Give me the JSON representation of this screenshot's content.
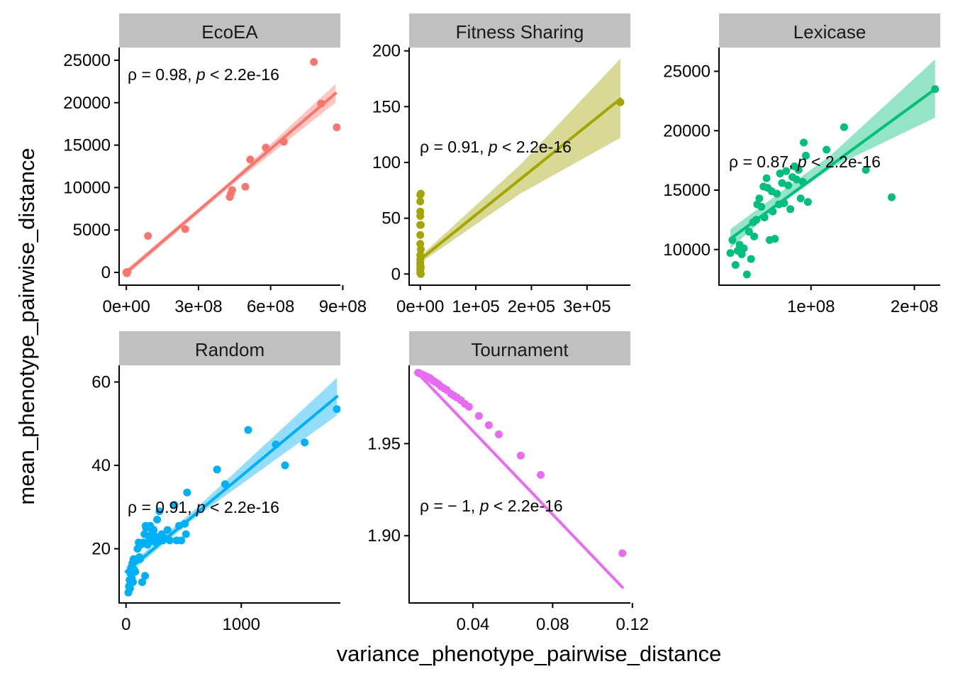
{
  "chart_data": {
    "type": "scatter",
    "xlabel": "variance_phenotype_pairwise_distance",
    "ylabel": "mean_phenotype_pairwise_distance",
    "grid": false,
    "legend": "none",
    "panels": [
      {
        "name": "EcoEA",
        "color": "#F8766D",
        "xlim": [
          -30000000,
          890000000
        ],
        "ylim": [
          -1500,
          26500
        ],
        "xticks": [
          0,
          300000000,
          600000000,
          900000000
        ],
        "xtick_labels": [
          "0e+00",
          "3e+08",
          "6e+08",
          "9e+08"
        ],
        "yticks": [
          0,
          5000,
          10000,
          15000,
          20000,
          25000
        ],
        "ytick_labels": [
          "0",
          "5000",
          "10000",
          "15000",
          "20000",
          "25000"
        ],
        "points": [
          [
            0,
            0
          ],
          [
            2000000,
            -100
          ],
          [
            5000000,
            50
          ],
          [
            90000000,
            4300
          ],
          [
            245000000,
            5100
          ],
          [
            430000000,
            8900
          ],
          [
            435000000,
            9300
          ],
          [
            440000000,
            9700
          ],
          [
            495000000,
            10100
          ],
          [
            515000000,
            13300
          ],
          [
            580000000,
            14700
          ],
          [
            655000000,
            15400
          ],
          [
            780000000,
            24800
          ],
          [
            810000000,
            19900
          ],
          [
            875000000,
            17100
          ]
        ],
        "fit": {
          "x0": 0,
          "y0": 0,
          "x1": 870000000,
          "y1": 21100
        },
        "band": [
          [
            0,
            -350,
            350
          ],
          [
            435000000,
            10200,
            10800
          ],
          [
            870000000,
            20000,
            22200
          ]
        ],
        "annotation": {
          "rho": "0.98",
          "p": "< 2.2e-16"
        }
      },
      {
        "name": "Fitness Sharing",
        "color": "#A3A500",
        "xlim": [
          -20000,
          378000
        ],
        "ylim": [
          -10,
          203
        ],
        "xticks": [
          0,
          100000,
          200000,
          300000
        ],
        "xtick_labels": [
          "0e+00",
          "1e+05",
          "2e+05",
          "3e+05"
        ],
        "yticks": [
          0,
          50,
          100,
          150,
          200
        ],
        "ytick_labels": [
          "0",
          "50",
          "100",
          "150",
          "200"
        ],
        "points": [
          [
            0,
            1
          ],
          [
            0,
            3
          ],
          [
            0,
            5
          ],
          [
            0,
            8
          ],
          [
            0,
            10
          ],
          [
            0,
            13
          ],
          [
            0,
            17
          ],
          [
            0,
            27
          ],
          [
            0,
            35
          ],
          [
            0,
            44
          ],
          [
            0,
            52
          ],
          [
            0,
            56
          ],
          [
            0,
            65
          ],
          [
            0,
            71
          ],
          [
            1000,
            0
          ],
          [
            1000,
            6
          ],
          [
            1000,
            22
          ],
          [
            1000,
            44
          ],
          [
            1000,
            72
          ],
          [
            360000,
            154
          ]
        ],
        "fit": {
          "x0": 0,
          "y0": 13,
          "x1": 360000,
          "y1": 157
        },
        "band": [
          [
            0,
            10,
            16
          ],
          [
            180000,
            72,
            98
          ],
          [
            360000,
            122,
            193
          ]
        ],
        "annotation": {
          "rho": "0.91",
          "p": "< 2.2e-16"
        }
      },
      {
        "name": "Lexicase",
        "color": "#00BF7D",
        "xlim": [
          11000000,
          225000000
        ],
        "ylim": [
          7000,
          27000
        ],
        "xticks": [
          100000000,
          200000000
        ],
        "xtick_labels": [
          "1e+08",
          "2e+08"
        ],
        "yticks": [
          10000,
          15000,
          20000,
          25000
        ],
        "ytick_labels": [
          "10000",
          "15000",
          "20000",
          "25000"
        ],
        "points": [
          [
            22000000,
            9700
          ],
          [
            24000000,
            10800
          ],
          [
            27000000,
            8700
          ],
          [
            29000000,
            9900
          ],
          [
            31000000,
            10400
          ],
          [
            33000000,
            9600
          ],
          [
            35000000,
            10100
          ],
          [
            38000000,
            7900
          ],
          [
            40000000,
            11500
          ],
          [
            42000000,
            9200
          ],
          [
            44000000,
            12300
          ],
          [
            45000000,
            11100
          ],
          [
            47000000,
            12500
          ],
          [
            48000000,
            13800
          ],
          [
            50000000,
            14300
          ],
          [
            52000000,
            13600
          ],
          [
            54000000,
            15300
          ],
          [
            55000000,
            12700
          ],
          [
            57000000,
            16000
          ],
          [
            58000000,
            15200
          ],
          [
            60000000,
            10800
          ],
          [
            62000000,
            14900
          ],
          [
            63000000,
            13200
          ],
          [
            65000000,
            10900
          ],
          [
            67000000,
            14700
          ],
          [
            69000000,
            13800
          ],
          [
            70000000,
            16400
          ],
          [
            72000000,
            15600
          ],
          [
            74000000,
            13900
          ],
          [
            76000000,
            16600
          ],
          [
            78000000,
            15400
          ],
          [
            80000000,
            13400
          ],
          [
            82000000,
            16100
          ],
          [
            84000000,
            17000
          ],
          [
            86000000,
            15900
          ],
          [
            88000000,
            16700
          ],
          [
            90000000,
            14300
          ],
          [
            92000000,
            15700
          ],
          [
            93000000,
            19000
          ],
          [
            95000000,
            17900
          ],
          [
            97000000,
            14000
          ],
          [
            115000000,
            18400
          ],
          [
            132000000,
            20300
          ],
          [
            153000000,
            16700
          ],
          [
            178000000,
            14400
          ],
          [
            220000000,
            23500
          ]
        ],
        "fit": {
          "x0": 22000000,
          "y0": 10900,
          "x1": 220000000,
          "y1": 23500
        },
        "band": [
          [
            22000000,
            10100,
            11700
          ],
          [
            70000000,
            13800,
            14800
          ],
          [
            120000000,
            16900,
            18000
          ],
          [
            220000000,
            21100,
            26000
          ]
        ],
        "annotation": {
          "rho": "0.87",
          "p": "< 2.2e-16"
        }
      },
      {
        "name": "Random",
        "color": "#00B0F6",
        "xlim": [
          -60,
          1860
        ],
        "ylim": [
          7,
          64
        ],
        "xticks": [
          0,
          1000
        ],
        "xtick_labels": [
          "0",
          "1000"
        ],
        "yticks": [
          20,
          40,
          60
        ],
        "ytick_labels": [
          "20",
          "40",
          "60"
        ],
        "points": [
          [
            20,
            9.5
          ],
          [
            25,
            11
          ],
          [
            30,
            12.5
          ],
          [
            35,
            10.5
          ],
          [
            40,
            14
          ],
          [
            45,
            15.5
          ],
          [
            50,
            13
          ],
          [
            55,
            16.5
          ],
          [
            60,
            12
          ],
          [
            65,
            17.5
          ],
          [
            70,
            15
          ],
          [
            80,
            14.5
          ],
          [
            90,
            17.5
          ],
          [
            100,
            20
          ],
          [
            110,
            21.5
          ],
          [
            115,
            18
          ],
          [
            120,
            17.5
          ],
          [
            130,
            21
          ],
          [
            140,
            12
          ],
          [
            150,
            21.5
          ],
          [
            160,
            23.5
          ],
          [
            165,
            13.5
          ],
          [
            170,
            25.5
          ],
          [
            175,
            25
          ],
          [
            185,
            21
          ],
          [
            195,
            23
          ],
          [
            200,
            21.5
          ],
          [
            210,
            25.5
          ],
          [
            220,
            22
          ],
          [
            230,
            24
          ],
          [
            240,
            24.5
          ],
          [
            250,
            23
          ],
          [
            260,
            21.5
          ],
          [
            270,
            27
          ],
          [
            280,
            22.5
          ],
          [
            290,
            29
          ],
          [
            300,
            23
          ],
          [
            310,
            23.5
          ],
          [
            320,
            22
          ],
          [
            340,
            22.5
          ],
          [
            360,
            24.5
          ],
          [
            380,
            22
          ],
          [
            420,
            30.5
          ],
          [
            440,
            22
          ],
          [
            460,
            25.5
          ],
          [
            480,
            22
          ],
          [
            510,
            26
          ],
          [
            520,
            23.5
          ],
          [
            530,
            33.5
          ],
          [
            790,
            39
          ],
          [
            860,
            35.5
          ],
          [
            1060,
            48.5
          ],
          [
            1300,
            45
          ],
          [
            1380,
            40
          ],
          [
            1550,
            45.5
          ],
          [
            1830,
            53.5
          ]
        ],
        "fit": {
          "x0": 0,
          "y0": 14.5,
          "x1": 1830,
          "y1": 56.5
        },
        "band": [
          [
            0,
            13.5,
            15.5
          ],
          [
            600,
            27.5,
            29.5
          ],
          [
            1830,
            52,
            61
          ]
        ],
        "annotation": {
          "rho": "0.91",
          "p": "< 2.2e-16"
        }
      },
      {
        "name": "Tournament",
        "color": "#E76BF3",
        "xlim": [
          0.008,
          0.119
        ],
        "ylim": [
          1.8635,
          1.9925
        ],
        "xticks": [
          0.04,
          0.08,
          0.12
        ],
        "xtick_labels": [
          "0.04",
          "0.08",
          "0.12"
        ],
        "yticks": [
          1.9,
          1.95
        ],
        "ytick_labels": [
          "1.90",
          "1.95"
        ],
        "points": [
          [
            0.0125,
            1.9885
          ],
          [
            0.0135,
            1.988
          ],
          [
            0.0145,
            1.9875
          ],
          [
            0.0155,
            1.987
          ],
          [
            0.0165,
            1.9865
          ],
          [
            0.0175,
            1.986
          ],
          [
            0.0185,
            1.9855
          ],
          [
            0.0195,
            1.9845
          ],
          [
            0.021,
            1.9835
          ],
          [
            0.0225,
            1.9825
          ],
          [
            0.024,
            1.981
          ],
          [
            0.0255,
            1.98
          ],
          [
            0.027,
            1.979
          ],
          [
            0.029,
            1.977
          ],
          [
            0.0305,
            1.976
          ],
          [
            0.032,
            1.975
          ],
          [
            0.034,
            1.9735
          ],
          [
            0.036,
            1.9715
          ],
          [
            0.038,
            1.97
          ],
          [
            0.043,
            1.965
          ],
          [
            0.048,
            1.96
          ],
          [
            0.053,
            1.955
          ],
          [
            0.064,
            1.9435
          ],
          [
            0.074,
            1.933
          ],
          [
            0.115,
            1.8905
          ]
        ],
        "fit": {
          "x0": 0.012,
          "y0": 1.9885,
          "x1": 0.115,
          "y1": 1.872
        },
        "band": [
          [
            0.012,
            1.988,
            1.989
          ],
          [
            0.115,
            1.871,
            1.873
          ]
        ],
        "annotation": {
          "rho": "− 1",
          "p": "< 2.2e-16"
        }
      }
    ]
  }
}
